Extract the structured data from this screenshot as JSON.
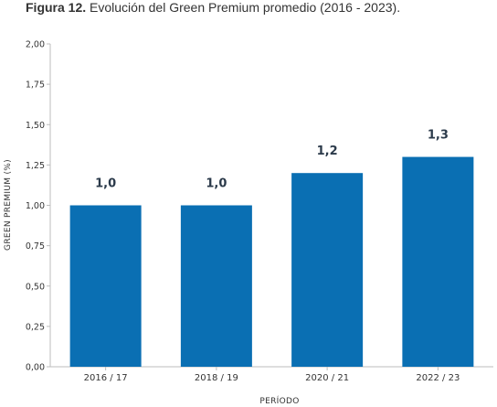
{
  "figure": {
    "title_bold": "Figura 12.",
    "title_rest": " Evolución del Green Premium promedio (2016 - 2023)."
  },
  "chart_data": {
    "type": "bar",
    "categories": [
      "2016 / 17",
      "2018 / 19",
      "2020 / 21",
      "2022 / 23"
    ],
    "values": [
      1.0,
      1.0,
      1.2,
      1.3
    ],
    "data_labels": [
      "1,0",
      "1,0",
      "1,2",
      "1,3"
    ],
    "y_ticks": [
      "0,00",
      "0,25",
      "0,50",
      "0,75",
      "1,00",
      "1,25",
      "1,50",
      "1,75",
      "2,00"
    ],
    "ylim": [
      0,
      2
    ],
    "xlabel": "PERÍODO",
    "ylabel": "GREEN PREMIUM (%)",
    "grid": false,
    "bar_color": "#0a6fb3"
  }
}
